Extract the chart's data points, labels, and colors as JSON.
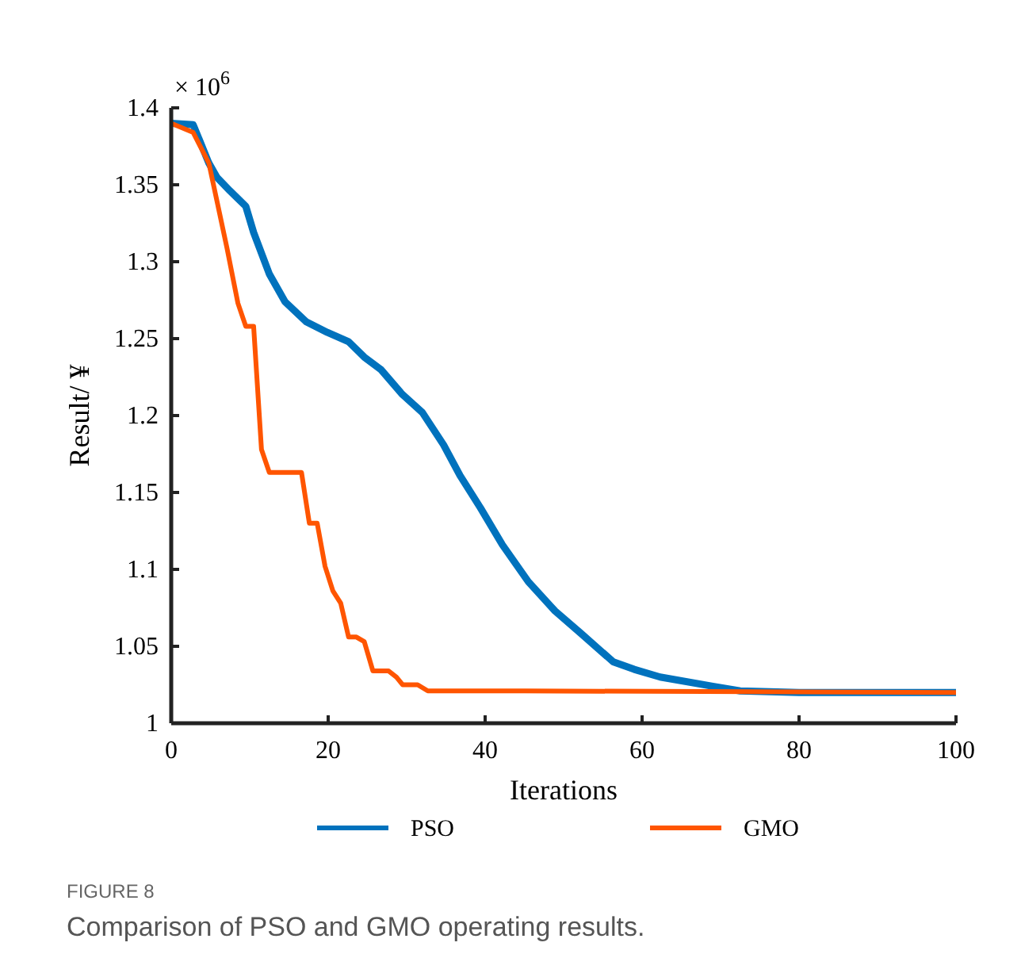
{
  "chart_data": {
    "type": "line",
    "xlabel": "Iterations",
    "ylabel": "Result/ ¥",
    "annotations": [
      "× 10$^{6}$",
      "FIGURE 8",
      "Comparison of PSO and GMO operating results."
    ],
    "xlim": [
      0,
      100
    ],
    "xticks": [
      0,
      20,
      40,
      60,
      80,
      100
    ],
    "ylim": [
      1,
      1.4
    ],
    "yticks": [
      1,
      1.05,
      1.1,
      1.15,
      1.2,
      1.25,
      1.3,
      1.35,
      1.4
    ],
    "grid": false,
    "legend": "bottom",
    "marker": "none",
    "line_style": "solid",
    "series": [
      {
        "name": "PSO",
        "color": "#0072bd",
        "x": [
          0,
          2.8,
          4.8,
          5.8,
          7.5,
          9.5,
          10.5,
          12.5,
          14.5,
          17.2,
          19.9,
          22.6,
          24.6,
          26.7,
          29.4,
          32,
          34.7,
          36.8,
          39.4,
          42.2,
          45.5,
          48.9,
          52.3,
          56.3,
          59,
          62.3,
          69,
          72.5,
          80,
          100
        ],
        "values": [
          1.39,
          1.389,
          1.364,
          1.355,
          1.346,
          1.336,
          1.319,
          1.292,
          1.274,
          1.261,
          1.254,
          1.248,
          1.238,
          1.23,
          1.214,
          1.202,
          1.181,
          1.161,
          1.14,
          1.116,
          1.092,
          1.073,
          1.058,
          1.04,
          1.035,
          1.03,
          1.024,
          1.021,
          1.02,
          1.02
        ]
      },
      {
        "name": "GMO",
        "color": "#ff5500",
        "x": [
          0,
          2.8,
          4.8,
          7.1,
          8.5,
          9.5,
          10.5,
          11.5,
          12.5,
          16.6,
          17.6,
          18.6,
          19.6,
          20.6,
          21.6,
          22.6,
          23.6,
          24.6,
          25.7,
          27.7,
          28.7,
          29.5,
          31.4,
          32.7,
          45,
          100
        ],
        "values": [
          1.39,
          1.384,
          1.364,
          1.309,
          1.273,
          1.258,
          1.258,
          1.178,
          1.163,
          1.163,
          1.13,
          1.13,
          1.102,
          1.086,
          1.078,
          1.056,
          1.056,
          1.053,
          1.034,
          1.034,
          1.03,
          1.025,
          1.025,
          1.021,
          1.021,
          1.02
        ]
      }
    ]
  }
}
